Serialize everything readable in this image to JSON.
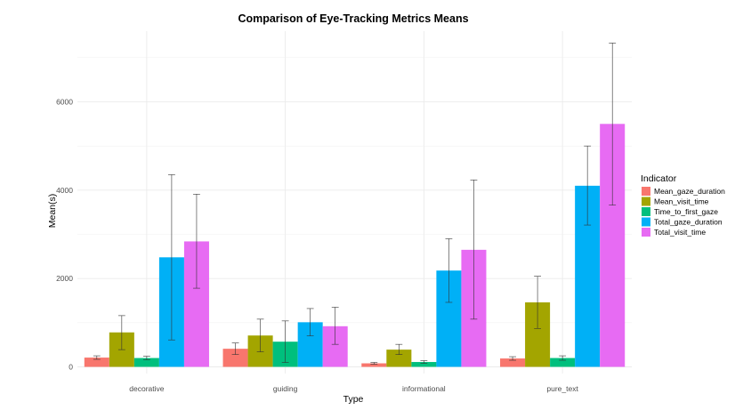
{
  "chart_data": {
    "type": "bar",
    "title": "Comparison of Eye-Tracking Metrics Means",
    "xlabel": "Type",
    "ylabel": "Mean(s)",
    "categories": [
      "decorative",
      "guiding",
      "informational",
      "pure_text"
    ],
    "ylim": [
      0,
      7500
    ],
    "yticks": [
      0,
      2000,
      4000,
      6000
    ],
    "grid": true,
    "legend": {
      "title": "Indicator",
      "position": "right"
    },
    "series": [
      {
        "name": "Mean_gaze_duration",
        "color": "#F8766D",
        "values": [
          210,
          410,
          80,
          190
        ],
        "error_low": [
          170,
          280,
          60,
          150
        ],
        "error_high": [
          250,
          540,
          100,
          230
        ]
      },
      {
        "name": "Mean_visit_time",
        "color": "#A3A500",
        "values": [
          780,
          710,
          390,
          1460
        ],
        "error_low": [
          390,
          340,
          280,
          870
        ],
        "error_high": [
          1160,
          1080,
          510,
          2050
        ]
      },
      {
        "name": "Time_to_first_gaze",
        "color": "#00BF7D",
        "values": [
          200,
          570,
          110,
          200
        ],
        "error_low": [
          160,
          100,
          80,
          150
        ],
        "error_high": [
          240,
          1040,
          140,
          250
        ]
      },
      {
        "name": "Total_gaze_duration",
        "color": "#00B0F6",
        "values": [
          2480,
          1010,
          2180,
          4100
        ],
        "error_low": [
          610,
          700,
          1460,
          3210
        ],
        "error_high": [
          4350,
          1320,
          2900,
          5000
        ]
      },
      {
        "name": "Total_visit_time",
        "color": "#E76BF3",
        "values": [
          2840,
          920,
          2650,
          5500
        ],
        "error_low": [
          1780,
          510,
          1080,
          3660
        ],
        "error_high": [
          3910,
          1350,
          4230,
          7330
        ]
      }
    ]
  }
}
